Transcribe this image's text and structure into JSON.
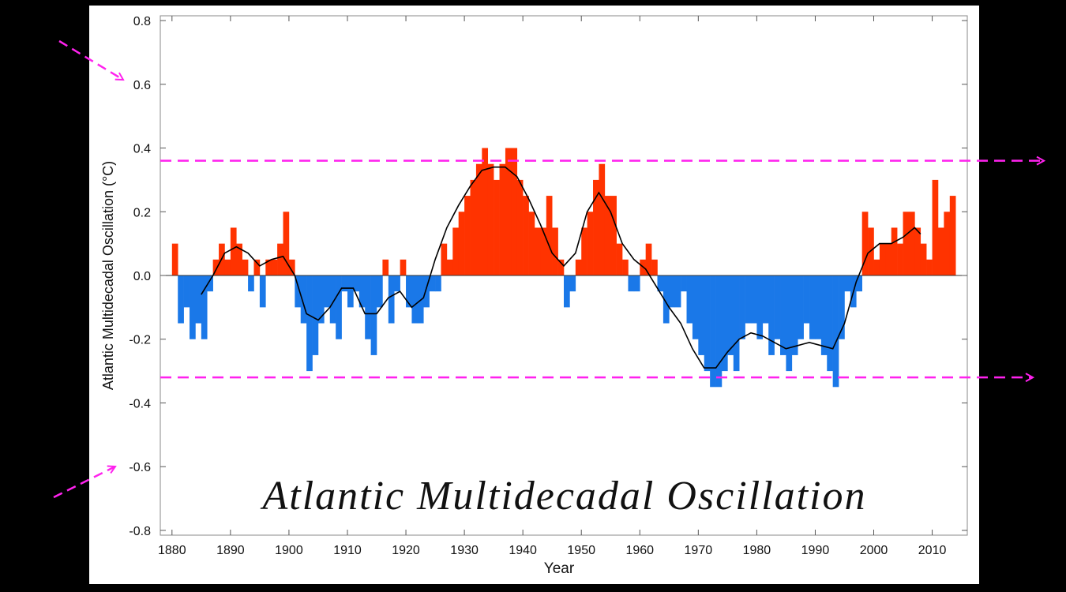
{
  "chart_data": {
    "type": "bar",
    "overlay_title": "Atlantic Multidecadal Oscillation",
    "y_label": "Atlantic Multidecadal Oscillation (°C)",
    "x_label": "Year",
    "xlim": [
      1878,
      2016
    ],
    "ylim": [
      -0.815,
      0.815
    ],
    "xticks": [
      1880,
      1890,
      1900,
      1910,
      1920,
      1930,
      1940,
      1950,
      1960,
      1970,
      1980,
      1990,
      2000,
      2010
    ],
    "yticks": [
      0.8,
      0.6,
      0.4,
      0.2,
      {
        "value": 0,
        "label": "0.0"
      },
      -0.2,
      -0.4,
      -0.6,
      -0.8
    ],
    "positive_color": "#ff3300",
    "negative_color": "#1a78e8",
    "series": [
      {
        "type": "bar",
        "x": [
          1880,
          1881,
          1882,
          1883,
          1884,
          1885,
          1886,
          1887,
          1888,
          1889,
          1890,
          1891,
          1892,
          1893,
          1894,
          1895,
          1896,
          1897,
          1898,
          1899,
          1900,
          1901,
          1902,
          1903,
          1904,
          1905,
          1906,
          1907,
          1908,
          1909,
          1910,
          1911,
          1912,
          1913,
          1914,
          1915,
          1916,
          1917,
          1918,
          1919,
          1920,
          1921,
          1922,
          1923,
          1924,
          1925,
          1926,
          1927,
          1928,
          1929,
          1930,
          1931,
          1932,
          1933,
          1934,
          1935,
          1936,
          1937,
          1938,
          1939,
          1940,
          1941,
          1942,
          1943,
          1944,
          1945,
          1946,
          1947,
          1948,
          1949,
          1950,
          1951,
          1952,
          1953,
          1954,
          1955,
          1956,
          1957,
          1958,
          1959,
          1960,
          1961,
          1962,
          1963,
          1964,
          1965,
          1966,
          1967,
          1968,
          1969,
          1970,
          1971,
          1972,
          1973,
          1974,
          1975,
          1976,
          1977,
          1978,
          1979,
          1980,
          1981,
          1982,
          1983,
          1984,
          1985,
          1986,
          1987,
          1988,
          1989,
          1990,
          1991,
          1992,
          1993,
          1994,
          1995,
          1996,
          1997,
          1998,
          1999,
          2000,
          2001,
          2002,
          2003,
          2004,
          2005,
          2006,
          2007,
          2008,
          2009,
          2010,
          2011,
          2012,
          2013
        ],
        "values": [
          0.1,
          -0.15,
          -0.1,
          -0.2,
          -0.15,
          -0.2,
          -0.05,
          0.05,
          0.1,
          0.05,
          0.15,
          0.1,
          0.05,
          -0.05,
          0.05,
          -0.1,
          0.05,
          0.05,
          0.1,
          0.2,
          0.05,
          -0.1,
          -0.15,
          -0.3,
          -0.25,
          -0.15,
          -0.1,
          -0.15,
          -0.2,
          -0.05,
          -0.1,
          -0.05,
          -0.1,
          -0.2,
          -0.25,
          -0.1,
          0.05,
          -0.15,
          -0.05,
          0.05,
          -0.1,
          -0.15,
          -0.15,
          -0.1,
          -0.05,
          -0.05,
          0.1,
          0.05,
          0.15,
          0.2,
          0.25,
          0.3,
          0.35,
          0.4,
          0.35,
          0.3,
          0.35,
          0.4,
          0.4,
          0.3,
          0.25,
          0.2,
          0.15,
          0.15,
          0.25,
          0.15,
          0.05,
          -0.1,
          -0.05,
          0.05,
          0.15,
          0.2,
          0.3,
          0.35,
          0.25,
          0.25,
          0.1,
          0.05,
          -0.05,
          -0.05,
          0.05,
          0.1,
          0.05,
          -0.05,
          -0.15,
          -0.1,
          -0.1,
          -0.05,
          -0.15,
          -0.2,
          -0.25,
          -0.3,
          -0.35,
          -0.35,
          -0.3,
          -0.25,
          -0.3,
          -0.2,
          -0.15,
          -0.15,
          -0.2,
          -0.15,
          -0.25,
          -0.2,
          -0.25,
          -0.3,
          -0.25,
          -0.2,
          -0.15,
          -0.2,
          -0.2,
          -0.25,
          -0.3,
          -0.35,
          -0.2,
          -0.05,
          -0.1,
          -0.05,
          0.2,
          0.15,
          0.05,
          0.1,
          0.1,
          0.15,
          0.1,
          0.2,
          0.2,
          0.15,
          0.1,
          0.05,
          0.3,
          0.15,
          0.2,
          0.25
        ]
      },
      {
        "type": "line",
        "color": "#000000",
        "x": [
          1885,
          1887,
          1889,
          1891,
          1893,
          1895,
          1897,
          1899,
          1901,
          1903,
          1905,
          1907,
          1909,
          1911,
          1913,
          1915,
          1917,
          1919,
          1921,
          1923,
          1925,
          1927,
          1929,
          1931,
          1933,
          1935,
          1937,
          1939,
          1941,
          1943,
          1945,
          1947,
          1949,
          1951,
          1953,
          1955,
          1957,
          1959,
          1961,
          1963,
          1965,
          1967,
          1969,
          1971,
          1973,
          1975,
          1977,
          1979,
          1981,
          1983,
          1985,
          1987,
          1989,
          1991,
          1993,
          1995,
          1997,
          1999,
          2001,
          2003,
          2005,
          2007,
          2008
        ],
        "values": [
          -0.06,
          0.0,
          0.07,
          0.09,
          0.07,
          0.03,
          0.05,
          0.06,
          0.0,
          -0.12,
          -0.14,
          -0.1,
          -0.04,
          -0.04,
          -0.12,
          -0.12,
          -0.07,
          -0.05,
          -0.1,
          -0.07,
          0.05,
          0.15,
          0.22,
          0.28,
          0.33,
          0.34,
          0.34,
          0.31,
          0.24,
          0.16,
          0.07,
          0.03,
          0.07,
          0.2,
          0.26,
          0.2,
          0.1,
          0.05,
          0.02,
          -0.04,
          -0.1,
          -0.15,
          -0.23,
          -0.29,
          -0.29,
          -0.24,
          -0.2,
          -0.18,
          -0.19,
          -0.21,
          -0.23,
          -0.22,
          -0.21,
          -0.22,
          -0.23,
          -0.15,
          -0.02,
          0.07,
          0.1,
          0.1,
          0.12,
          0.15,
          0.13
        ]
      }
    ],
    "reference_lines": [
      {
        "value": 0.36,
        "color": "#ff22ee"
      },
      {
        "value": -0.32,
        "color": "#ff22ee"
      }
    ]
  }
}
